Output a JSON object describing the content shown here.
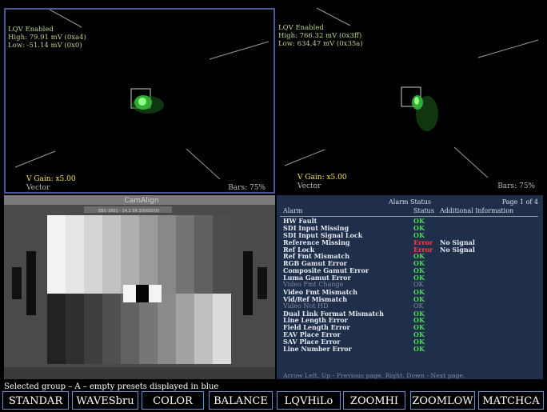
{
  "vector_left": {
    "line1": "LQV Enabled",
    "line2": "High: 79.91 mV (0xa4)",
    "line3": "Low: -51.14 mV (0x0)",
    "gain": "V Gain: x5.00",
    "mode": "Vector",
    "bars": "Bars: 75%"
  },
  "vector_right": {
    "line1": "LQV Enabled",
    "line2": "High: 766.32 mV (0x3ff)",
    "line3": "Low: 634.47 mV (0x35a)",
    "gain": "V Gain: x5.00",
    "mode": "Vector",
    "bars": "Bars: 75%"
  },
  "picture": {
    "top_text": "CamAlign",
    "sub_text": "EBU 1801 - 14.1  SR 30000000",
    "greyscale_upper": [
      "#f3f3f3",
      "#e6e6e6",
      "#d4d4d4",
      "#c2c2c2",
      "#afafaf",
      "#9c9c9c",
      "#888888",
      "#747474",
      "#606060",
      "#4d4d4d"
    ],
    "greyscale_lower": [
      "#222222",
      "#2f2f2f",
      "#3f3f3f",
      "#505050",
      "#626262",
      "#767676",
      "#8a8a8a",
      "#a3a3a3",
      "#c0c0c0",
      "#dcdcdc"
    ]
  },
  "alarm_panel": {
    "title": "Alarm Status",
    "page": "Page 1 of 4",
    "col_alarm": "Alarm",
    "col_status": "Status",
    "col_info": "Additional Information",
    "rows": [
      {
        "name": "HW Fault",
        "status": "OK",
        "info": "",
        "dim": false
      },
      {
        "name": "SDI Input Missing",
        "status": "OK",
        "info": "",
        "dim": false
      },
      {
        "name": "SDI Input Signal Lock",
        "status": "OK",
        "info": "",
        "dim": false
      },
      {
        "name": "Reference Missing",
        "status": "Error",
        "info": "No Signal",
        "dim": false
      },
      {
        "name": "Ref Lock",
        "status": "Error",
        "info": "No Signal",
        "dim": false
      },
      {
        "name": "Ref Fmt Mismatch",
        "status": "OK",
        "info": "",
        "dim": false
      },
      {
        "name": "RGB Gamut Error",
        "status": "OK",
        "info": "",
        "dim": false
      },
      {
        "name": "Composite Gamut Error",
        "status": "OK",
        "info": "",
        "dim": false
      },
      {
        "name": "Luma Gamut Error",
        "status": "OK",
        "info": "",
        "dim": false
      },
      {
        "name": "Video Fmt Change",
        "status": "OK",
        "info": "",
        "dim": true
      },
      {
        "name": "Video Fmt Mismatch",
        "status": "OK",
        "info": "",
        "dim": false
      },
      {
        "name": "Vid/Ref Mismatch",
        "status": "OK",
        "info": "",
        "dim": false
      },
      {
        "name": "Video Not HD",
        "status": "OK",
        "info": "",
        "dim": true
      },
      {
        "name": "Dual Link Format Mismatch",
        "status": "OK",
        "info": "",
        "dim": false
      },
      {
        "name": "Line Length Error",
        "status": "OK",
        "info": "",
        "dim": false
      },
      {
        "name": "Field Length Error",
        "status": "OK",
        "info": "",
        "dim": false
      },
      {
        "name": "EAV Place Error",
        "status": "OK",
        "info": "",
        "dim": false
      },
      {
        "name": "SAV Place Error",
        "status": "OK",
        "info": "",
        "dim": false
      },
      {
        "name": "Line Number Error",
        "status": "OK",
        "info": "",
        "dim": false
      }
    ],
    "footer": "Arrow Left, Up - Previous page, Right, Down - Next page."
  },
  "status_line": "Selected group – A – empty presets displayed in blue",
  "presets": [
    "STANDAR",
    "WAVESbru",
    "COLOR",
    "BALANCE",
    "LQVHiLo",
    "ZOOMHI",
    "ZOOMLOW",
    "MATCHCA"
  ],
  "colors": {
    "alarm_bg": "#1f2f4a",
    "ok": "#4fd35a",
    "error": "#ff3b3b",
    "readout": "#bcd48a",
    "gain": "#f2e04a",
    "active_border": "#4a5a98",
    "preset_border": "#6a8fd8"
  }
}
